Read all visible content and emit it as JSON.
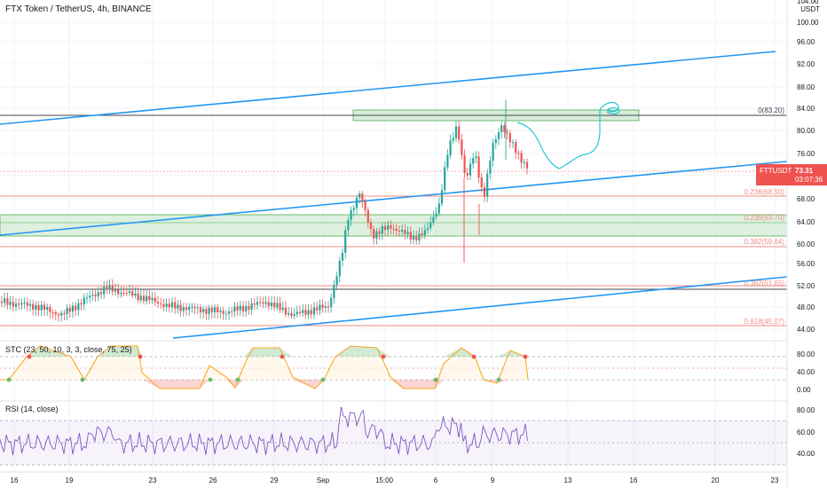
{
  "header": {
    "title": "FTX Token / TetherUS, 4h, BINANCE"
  },
  "indicators": {
    "stc": {
      "label": "STC (23, 50, 10, 3, 3, close, 75, 25)",
      "ticks": [
        "80.00",
        "40.00",
        "0.00"
      ]
    },
    "rsi": {
      "label": "RSI (14, close)",
      "ticks": [
        "80.00",
        "60.00",
        "40.00"
      ]
    }
  },
  "price_axis": {
    "unit": "USDT",
    "ticks": [
      "104.00",
      "100.00",
      "96.00",
      "92.00",
      "88.00",
      "84.00",
      "80.00",
      "76.00",
      "72.00",
      "68.00",
      "64.00",
      "60.00",
      "56.00",
      "52.00",
      "48.00",
      "44.00"
    ]
  },
  "time_axis": {
    "ticks": [
      "16",
      "19",
      "23",
      "26",
      "29",
      "Sep",
      "15:00",
      "6",
      "9",
      "13",
      "16",
      "20",
      "23"
    ]
  },
  "symbol_badge": {
    "symbol": "FTTUSDT",
    "price": "73.31",
    "countdown": "03:07:36"
  },
  "fib_levels": [
    {
      "label": "0(83.20)",
      "value": 83.2
    },
    {
      "label": "0.236(68.50)",
      "value": 68.5
    },
    {
      "label": "0.236(63.70)",
      "value": 63.7
    },
    {
      "label": "0.382(59.64)",
      "value": 59.64
    },
    {
      "label": "0.382(51.65)",
      "value": 51.65
    },
    {
      "label": "0.618(45.07)",
      "value": 45.07
    }
  ],
  "colors": {
    "up": "#26a69a",
    "down": "#ef5350",
    "trendline": "#2196f3",
    "fib_line": "#f28b82",
    "zone_fill": "#c8e6c9",
    "badge": "#ef5350",
    "stc_up": "#66bb6a",
    "stc_down": "#ef5350",
    "rsi_line": "#7e57c2"
  }
}
